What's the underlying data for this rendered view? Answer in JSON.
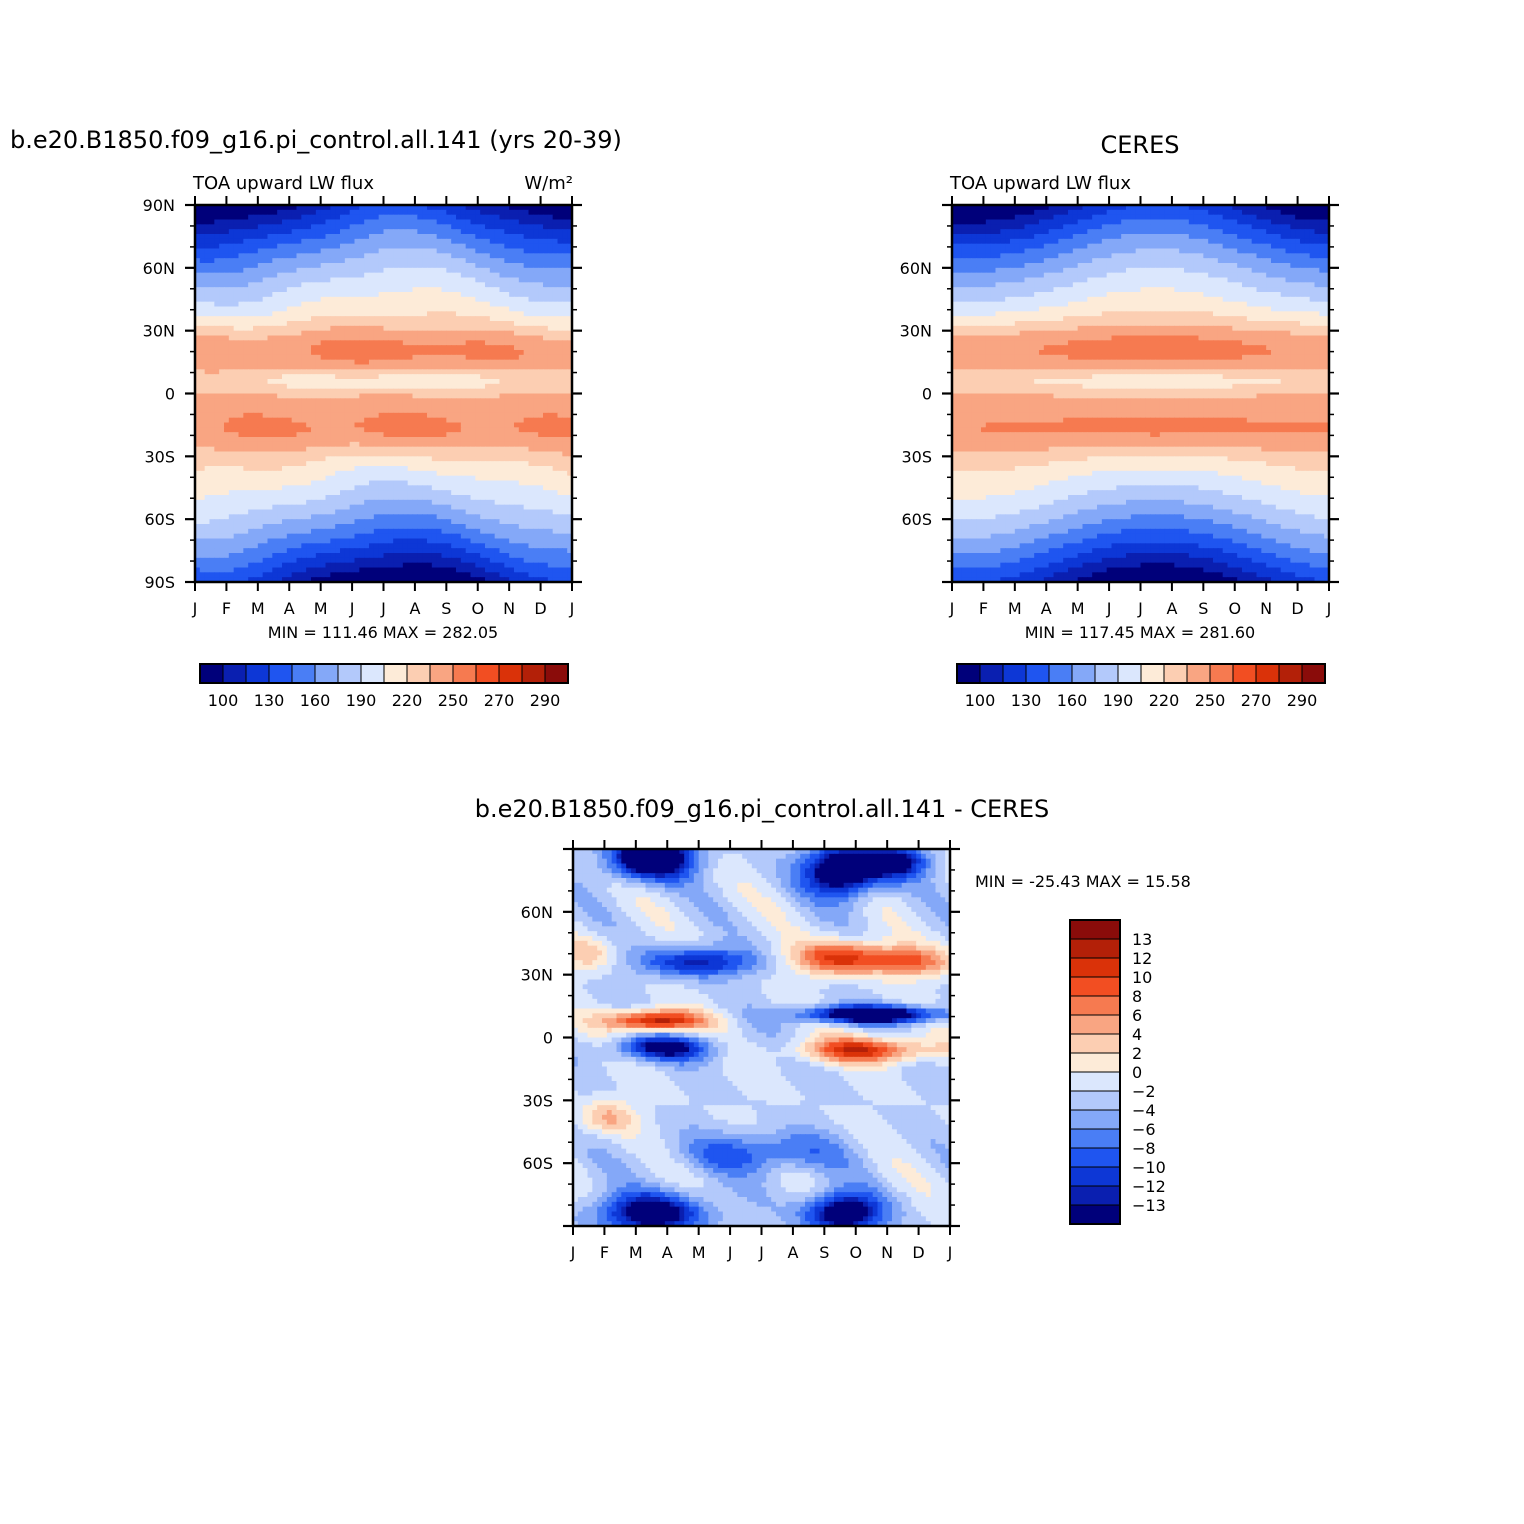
{
  "chart_data": [
    {
      "id": "model",
      "type": "heatmap",
      "title": "b.e20.B1850.f09_g16.pi_control.all.141 (yrs 20-39)",
      "left_label": "TOA upward LW flux",
      "right_label": "W/m²",
      "months": [
        "J",
        "F",
        "M",
        "A",
        "M",
        "J",
        "J",
        "A",
        "S",
        "O",
        "N",
        "D",
        "J"
      ],
      "lat_labels": [
        "90N",
        "60N",
        "30N",
        "0",
        "30S",
        "60S",
        "90S"
      ],
      "ylim": [
        -90,
        90
      ],
      "stats": "MIN = 111.46 MAX = 282.05",
      "min": 111.46,
      "max": 282.05,
      "colorbar_labels": [
        "100",
        "130",
        "160",
        "190",
        "220",
        "250",
        "270",
        "290"
      ],
      "colorbar_orientation": "horizontal"
    },
    {
      "id": "obs",
      "type": "heatmap",
      "title": "CERES",
      "left_label": "TOA upward LW flux",
      "months": [
        "J",
        "F",
        "M",
        "A",
        "M",
        "J",
        "J",
        "A",
        "S",
        "O",
        "N",
        "D",
        "J"
      ],
      "lat_labels": [
        "60N",
        "30N",
        "0",
        "30S",
        "60S"
      ],
      "ylim": [
        -90,
        90
      ],
      "stats": "MIN = 117.45 MAX = 281.60",
      "min": 117.45,
      "max": 281.6,
      "colorbar_labels": [
        "100",
        "130",
        "160",
        "190",
        "220",
        "250",
        "270",
        "290"
      ],
      "colorbar_orientation": "horizontal"
    },
    {
      "id": "diff",
      "type": "heatmap",
      "title": "b.e20.B1850.f09_g16.pi_control.all.141 - CERES",
      "months": [
        "J",
        "F",
        "M",
        "A",
        "M",
        "J",
        "J",
        "A",
        "S",
        "O",
        "N",
        "D",
        "J"
      ],
      "lat_labels": [
        "60N",
        "30N",
        "0",
        "30S",
        "60S"
      ],
      "ylim": [
        -90,
        90
      ],
      "stats": "MIN = -25.43 MAX = 15.58",
      "min": -25.43,
      "max": 15.58,
      "colorbar_labels": [
        "13",
        "12",
        "10",
        "8",
        "6",
        "4",
        "2",
        "0",
        "−2",
        "−4",
        "−6",
        "−8",
        "−10",
        "−12",
        "−13"
      ],
      "colorbar_orientation": "vertical"
    }
  ],
  "palette": [
    "#00007a",
    "#0a1fb0",
    "#0d37d6",
    "#1f55f0",
    "#4a7ef5",
    "#84a8f8",
    "#b3c9fb",
    "#dbe7fd",
    "#fdebd8",
    "#fcceb2",
    "#f9a582",
    "#f67a50",
    "#f24e22",
    "#da3209",
    "#b32008",
    "#8a0c0a"
  ]
}
